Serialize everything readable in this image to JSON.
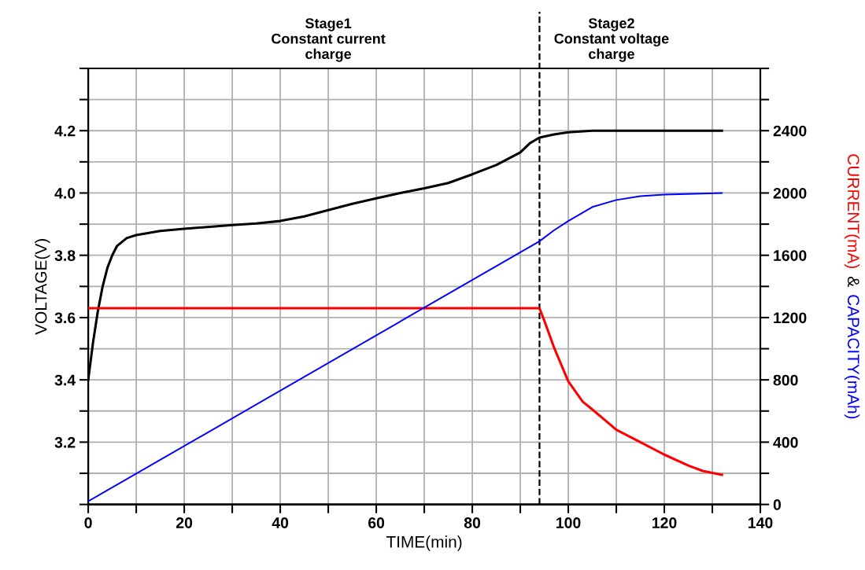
{
  "chart_data": {
    "type": "line",
    "xlabel": "TIME(min)",
    "ylabel": "VOLTAGE(V)",
    "y2label": "CURRENT(mA) & CAPACITY(mAh)",
    "annotations": [
      "Stage1\nConstant current\ncharge",
      "Stage2\nConstant voltage\ncharge"
    ],
    "series": [
      {
        "color": "#000000",
        "x": [
          0,
          1,
          2,
          3,
          4,
          5,
          6,
          8,
          10,
          15,
          20,
          30,
          35,
          40,
          45,
          50,
          55,
          60,
          65,
          70,
          75,
          80,
          85,
          90,
          92,
          94,
          97,
          100,
          105,
          110,
          132
        ],
        "values": [
          3.4,
          3.52,
          3.62,
          3.7,
          3.76,
          3.8,
          3.83,
          3.855,
          3.865,
          3.878,
          3.885,
          3.897,
          3.902,
          3.91,
          3.925,
          3.945,
          3.965,
          3.983,
          4.0,
          4.015,
          4.032,
          4.06,
          4.09,
          4.13,
          4.16,
          4.178,
          4.188,
          4.195,
          4.2,
          4.2,
          4.2
        ]
      },
      {
        "color": "#ff0000",
        "axis": "y2",
        "x": [
          0,
          94,
          95,
          97,
          100,
          103,
          105,
          110,
          115,
          120,
          125,
          128,
          132
        ],
        "values": [
          1260,
          1260,
          1180,
          1010,
          790,
          660,
          610,
          480,
          400,
          320,
          250,
          215,
          190
        ]
      },
      {
        "color": "#0000ff",
        "axis": "y2",
        "x": [
          0,
          94,
          97,
          100,
          105,
          110,
          115,
          120,
          132
        ],
        "values": [
          20,
          1690,
          1760,
          1820,
          1910,
          1955,
          1980,
          1990,
          2000
        ]
      }
    ],
    "xlim": [
      0,
      140
    ],
    "xticks": [
      0,
      {
        "value": 10,
        "label": null
      },
      20,
      {
        "value": 30,
        "label": null
      },
      40,
      {
        "value": 50,
        "label": null
      },
      60,
      {
        "value": 70,
        "label": null
      },
      80,
      {
        "value": 90,
        "label": null
      },
      100,
      {
        "value": 110,
        "label": null
      },
      120,
      {
        "value": 130,
        "label": null
      },
      140
    ],
    "ylim": [
      3.0,
      4.4
    ],
    "yticks": [
      {
        "value": 3.0,
        "label": null
      },
      {
        "value": 3.1,
        "label": null
      },
      3.2,
      {
        "value": 3.3,
        "label": null
      },
      3.4,
      {
        "value": 3.5,
        "label": null
      },
      3.6,
      {
        "value": 3.7,
        "label": null
      },
      3.8,
      {
        "value": 3.9,
        "label": null
      },
      {
        "value": 4.0,
        "label": "4.0"
      },
      {
        "value": 4.1,
        "label": null
      },
      4.2,
      {
        "value": 4.3,
        "label": null
      },
      {
        "value": 4.4,
        "label": null
      }
    ],
    "y2lim": [
      0,
      2800
    ],
    "y2ticks": [
      0,
      {
        "value": 200,
        "label": null
      },
      400,
      {
        "value": 600,
        "label": null
      },
      800,
      {
        "value": 1000,
        "label": null
      },
      1200,
      {
        "value": 1400,
        "label": null
      },
      1600,
      {
        "value": 1800,
        "label": null
      },
      2000,
      {
        "value": 2200,
        "label": null
      },
      2400,
      {
        "value": 2600,
        "label": null
      },
      {
        "value": 2800,
        "label": null
      }
    ],
    "ref_lines": [
      {
        "axis": "x",
        "value": 94,
        "color": "#000000",
        "line_style": "dashed"
      }
    ],
    "grid": true,
    "marker": "none",
    "line_style": "solid"
  }
}
